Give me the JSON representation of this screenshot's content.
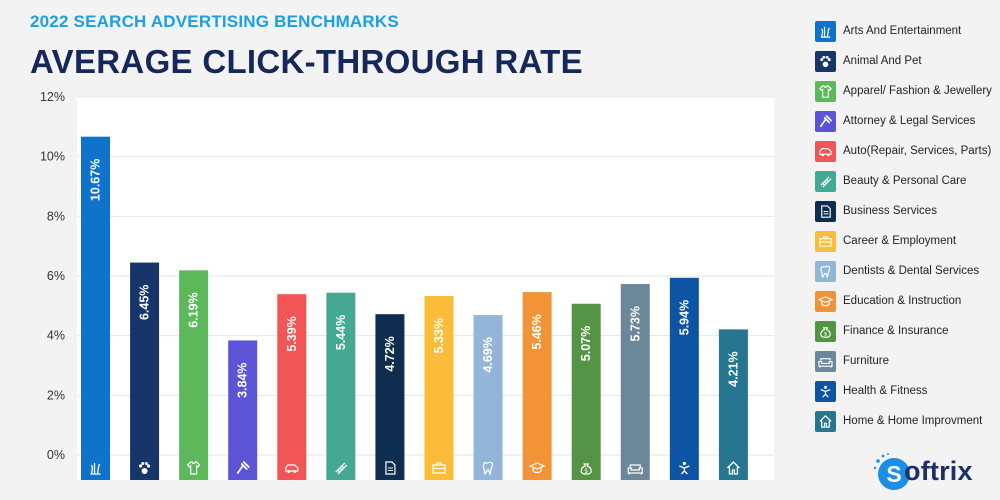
{
  "header": {
    "subtitle": "2022 SEARCH ADVERTISING BENCHMARKS",
    "title": "AVERAGE CLICK-THROUGH RATE"
  },
  "brand": {
    "name": "oftrix"
  },
  "chart_data": {
    "type": "bar",
    "ylim": [
      0,
      12
    ],
    "ytick_labels": [
      "0%",
      "2%",
      "4%",
      "6%",
      "8%",
      "10%",
      "12%"
    ],
    "grid": true,
    "legend_position": "right",
    "categories": [
      "Arts And Entertainment",
      "Animal And Pet",
      "Apparel/ Fashion & Jewellery",
      "Attorney & Legal Services",
      "Auto(Repair, Services, Parts)",
      "Beauty & Personal Care",
      "Business Services",
      "Career & Employment",
      "Dentists & Dental  Services",
      "Education & Instruction",
      "Finance & Insurance",
      "Furniture",
      "Health & Fitness",
      "Home & Home Improvment"
    ],
    "values": [
      10.67,
      6.45,
      6.19,
      3.84,
      5.39,
      5.44,
      4.72,
      5.33,
      4.69,
      5.46,
      5.07,
      5.73,
      5.94,
      4.21
    ],
    "value_labels": [
      "10.67%",
      "6.45%",
      "6.19%",
      "3.84%",
      "5.39%",
      "5.44%",
      "4.72%",
      "5.33%",
      "4.69%",
      "5.46%",
      "5.07%",
      "5.73%",
      "5.94%",
      "4.21%"
    ],
    "colors": [
      "#0f73cc",
      "#16356b",
      "#5cb85a",
      "#5b54d6",
      "#f25555",
      "#45a893",
      "#0f2d4f",
      "#fbbc3a",
      "#93b5d8",
      "#f39338",
      "#559445",
      "#6c8799",
      "#0d54a4",
      "#267591"
    ],
    "icons": [
      "arts-icon",
      "paw-icon",
      "shirt-icon",
      "gavel-icon",
      "car-icon",
      "comb-icon",
      "document-icon",
      "briefcase-icon",
      "tooth-icon",
      "graduation-cap-icon",
      "money-bag-icon",
      "sofa-icon",
      "fitness-icon",
      "home-icon"
    ]
  }
}
